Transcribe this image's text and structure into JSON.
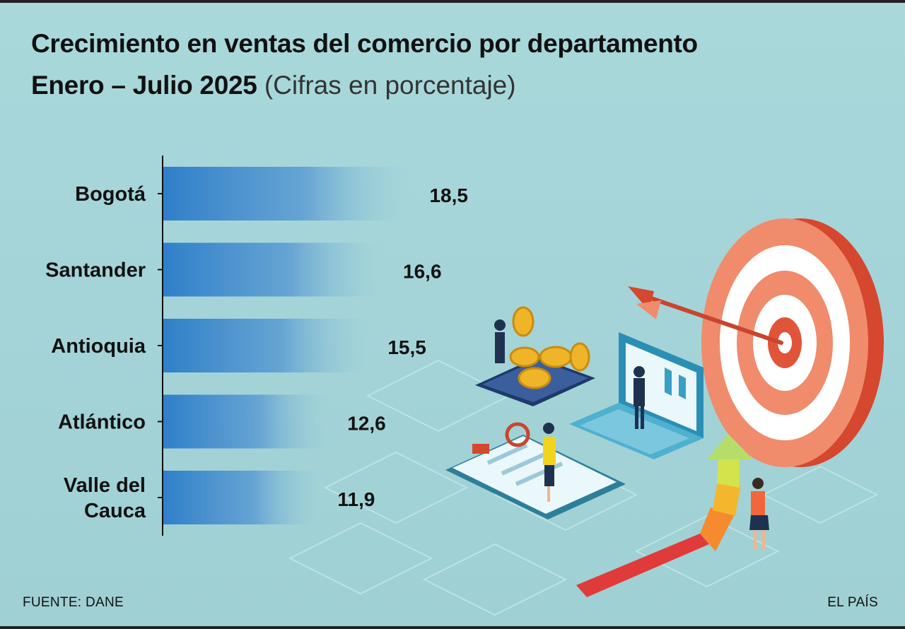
{
  "header": {
    "title": "Crecimiento en ventas del comercio por departamento",
    "subtitle_bold": "Enero – Julio 2025",
    "subtitle_light": "(Cifras en porcentaje)"
  },
  "footer": {
    "source": "FUENTE: DANE",
    "brand": "EL PAÍS"
  },
  "chart_data": {
    "type": "bar",
    "orientation": "horizontal",
    "title": "Crecimiento en ventas del comercio por departamento",
    "subtitle": "Enero – Julio 2025 (Cifras en porcentaje)",
    "categories": [
      "Bogotá",
      "Santander",
      "Antioquia",
      "Atlántico",
      "Valle del Cauca"
    ],
    "category_lines": [
      [
        "Bogotá"
      ],
      [
        "Santander"
      ],
      [
        "Antioquia"
      ],
      [
        "Atlántico"
      ],
      [
        "Valle del",
        "Cauca"
      ]
    ],
    "values": [
      18.5,
      16.6,
      15.5,
      12.6,
      11.9
    ],
    "value_labels": [
      "18,5",
      "16,6",
      "15,5",
      "12,6",
      "11,9"
    ],
    "xlim": [
      0,
      20
    ],
    "grid": false,
    "legend": "none",
    "bar_color": "#2f7fc9"
  }
}
